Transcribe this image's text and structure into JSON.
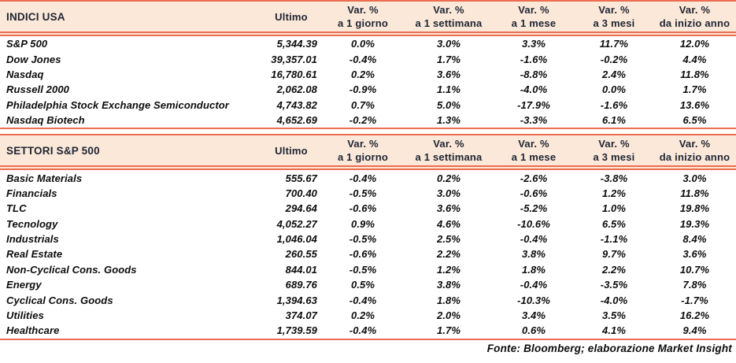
{
  "colors": {
    "accent_line": "#ec6d50",
    "header_bg": "#fce8d9",
    "header_text": "#1d2533",
    "body_text": "#0c0c0d"
  },
  "columns": {
    "ultimo_label": "Ultimo",
    "var_label": "Var. %",
    "periods": [
      "a 1 giorno",
      "a 1 settimana",
      "a 1 mese",
      "a 3 mesi",
      "da inizio anno"
    ]
  },
  "tables": [
    {
      "title": "INDICI USA",
      "rows": [
        {
          "name": "S&P 500",
          "ultimo": "5,344.39",
          "vars": [
            "0.0%",
            "3.0%",
            "3.3%",
            "11.7%",
            "12.0%"
          ]
        },
        {
          "name": "Dow Jones",
          "ultimo": "39,357.01",
          "vars": [
            "-0.4%",
            "1.7%",
            "-1.6%",
            "-0.2%",
            "4.4%"
          ]
        },
        {
          "name": "Nasdaq",
          "ultimo": "16,780.61",
          "vars": [
            "0.2%",
            "3.6%",
            "-8.8%",
            "2.4%",
            "11.8%"
          ]
        },
        {
          "name": "Russell 2000",
          "ultimo": "2,062.08",
          "vars": [
            "-0.9%",
            "1.1%",
            "-4.0%",
            "0.0%",
            "1.7%"
          ]
        },
        {
          "name": "Philadelphia Stock Exchange Semiconductor",
          "ultimo": "4,743.82",
          "vars": [
            "0.7%",
            "5.0%",
            "-17.9%",
            "-1.6%",
            "13.6%"
          ]
        },
        {
          "name": "Nasdaq Biotech",
          "ultimo": "4,652.69",
          "vars": [
            "-0.2%",
            "1.3%",
            "-3.3%",
            "6.1%",
            "6.5%"
          ]
        }
      ]
    },
    {
      "title": "SETTORI S&P 500",
      "rows": [
        {
          "name": "Basic Materials",
          "ultimo": "555.67",
          "vars": [
            "-0.4%",
            "0.2%",
            "-2.6%",
            "-3.8%",
            "3.0%"
          ]
        },
        {
          "name": "Financials",
          "ultimo": "700.40",
          "vars": [
            "-0.5%",
            "3.0%",
            "-0.6%",
            "1.2%",
            "11.8%"
          ]
        },
        {
          "name": "TLC",
          "ultimo": "294.64",
          "vars": [
            "-0.6%",
            "3.6%",
            "-5.2%",
            "1.0%",
            "19.8%"
          ]
        },
        {
          "name": "Tecnology",
          "ultimo": "4,052.27",
          "vars": [
            "0.9%",
            "4.6%",
            "-10.6%",
            "6.5%",
            "19.3%"
          ]
        },
        {
          "name": "Industrials",
          "ultimo": "1,046.04",
          "vars": [
            "-0.5%",
            "2.5%",
            "-0.4%",
            "-1.1%",
            "8.4%"
          ]
        },
        {
          "name": "Real Estate",
          "ultimo": "260.55",
          "vars": [
            "-0.6%",
            "2.2%",
            "3.8%",
            "9.7%",
            "3.6%"
          ]
        },
        {
          "name": "Non-Cyclical Cons. Goods",
          "ultimo": "844.01",
          "vars": [
            "-0.5%",
            "1.2%",
            "1.8%",
            "2.2%",
            "10.7%"
          ]
        },
        {
          "name": "Energy",
          "ultimo": "689.76",
          "vars": [
            "0.5%",
            "3.8%",
            "-0.4%",
            "-3.5%",
            "7.8%"
          ]
        },
        {
          "name": "Cyclical Cons. Goods",
          "ultimo": "1,394.63",
          "vars": [
            "-0.4%",
            "1.8%",
            "-10.3%",
            "-4.0%",
            "-1.7%"
          ]
        },
        {
          "name": "Utilities",
          "ultimo": "374.07",
          "vars": [
            "0.2%",
            "2.0%",
            "3.4%",
            "3.5%",
            "16.2%"
          ]
        },
        {
          "name": "Healthcare",
          "ultimo": "1,739.59",
          "vars": [
            "-0.4%",
            "1.7%",
            "0.6%",
            "4.1%",
            "9.4%"
          ]
        }
      ]
    }
  ],
  "footer": {
    "source_note": "Fonte: Bloomberg; elaborazione Market Insight"
  }
}
